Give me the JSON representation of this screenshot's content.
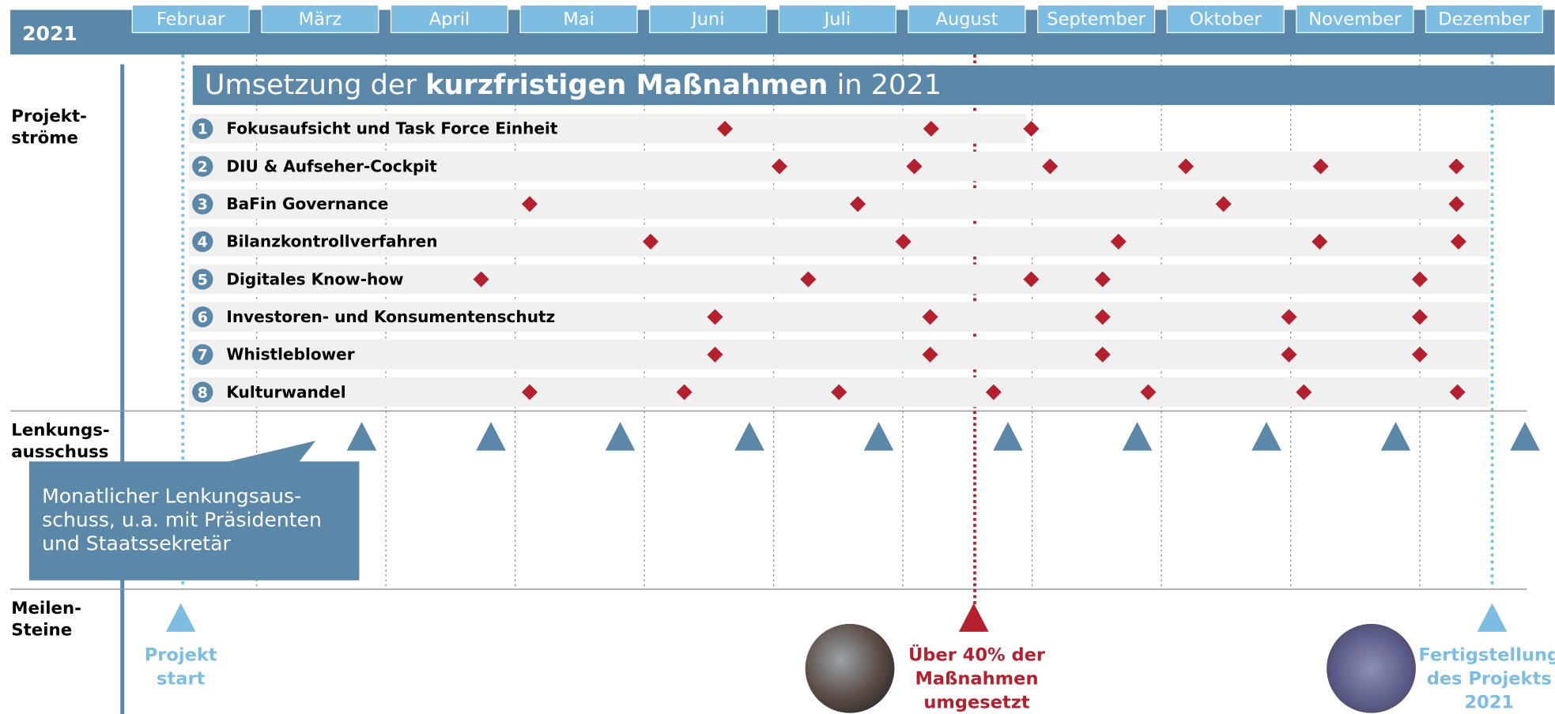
{
  "header": {
    "year": "2021",
    "months": [
      "Februar",
      "März",
      "April",
      "Mai",
      "Juni",
      "Juli",
      "August",
      "September",
      "Oktober",
      "November",
      "Dezember"
    ]
  },
  "banner": {
    "prefix": "Umsetzung der ",
    "bold": "kurzfristigen Maßnahmen",
    "suffix": " in 2021"
  },
  "side_labels": [
    [
      "Projekt-",
      "ströme"
    ],
    [
      "Lenkungs-",
      "ausschuss"
    ],
    [
      "Meilen-",
      "Steine"
    ]
  ],
  "streams": [
    {
      "number": 1,
      "label": "Fokusaufsicht und Task Force Einheit"
    },
    {
      "number": 2,
      "label": "DIU & Aufseher-Cockpit"
    },
    {
      "number": 3,
      "label": "BaFin Governance"
    },
    {
      "number": 4,
      "label": "Bilanzkontrollverfahren"
    },
    {
      "number": 5,
      "label": "Digitales Know-how"
    },
    {
      "number": 6,
      "label": "Investoren- und Konsumentenschutz"
    },
    {
      "number": 7,
      "label": "Whistleblower"
    },
    {
      "number": 8,
      "label": "Kulturwandel"
    }
  ],
  "callout": [
    "Monatlicher Lenkungsaus-",
    "schuss, u.a. mit Präsidenten",
    "und Staatssekretär"
  ],
  "milestones": [
    {
      "lines": [
        "Projekt",
        "start"
      ]
    },
    {
      "lines": [
        "Über 40% der",
        "Maßnahmen",
        "umgesetzt"
      ]
    },
    {
      "lines": [
        "Fertigstellung",
        "des Projekts",
        "2021"
      ]
    }
  ]
}
